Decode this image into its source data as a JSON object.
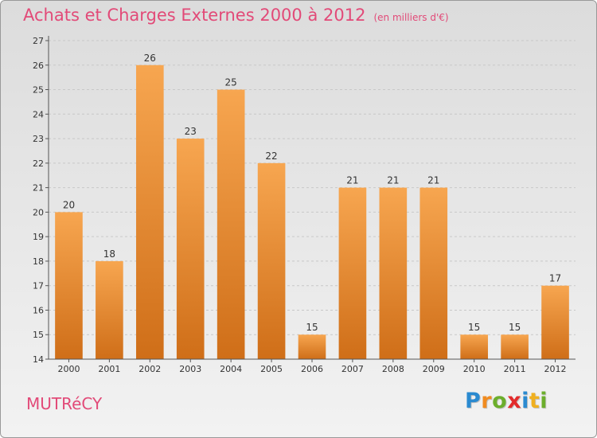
{
  "header": {
    "title": "Achats et Charges Externes 2000 à 2012",
    "unit": "(en milliers d'€)"
  },
  "footer": {
    "place": "MUTRéCY",
    "logo_letters": [
      {
        "char": "P",
        "color": "#2a8ad0"
      },
      {
        "char": "r",
        "color": "#f08b20"
      },
      {
        "char": "o",
        "color": "#6cae2c"
      },
      {
        "char": "x",
        "color": "#e22b2b"
      },
      {
        "char": "i",
        "color": "#2a8ad0"
      },
      {
        "char": "t",
        "color": "#f0b020"
      },
      {
        "char": "i",
        "color": "#6cae2c"
      }
    ]
  },
  "colors": {
    "title": "#e24a78",
    "bar_light": "#f7a650",
    "bar_dark": "#cf6e18",
    "grid": "#c8c8c8"
  },
  "chart_data": {
    "type": "bar",
    "title": "Achats et Charges Externes 2000 à 2012",
    "subtitle": "(en milliers d'€)",
    "categories": [
      "2000",
      "2001",
      "2002",
      "2003",
      "2004",
      "2005",
      "2006",
      "2007",
      "2008",
      "2009",
      "2010",
      "2011",
      "2012"
    ],
    "values": [
      20,
      18,
      26,
      23,
      25,
      22,
      15,
      21,
      21,
      21,
      15,
      15,
      17
    ],
    "ylim": [
      14,
      27
    ],
    "yticks": [
      14,
      15,
      16,
      17,
      18,
      19,
      20,
      21,
      22,
      23,
      24,
      25,
      26,
      27
    ],
    "grid": true,
    "xlabel": "",
    "ylabel": ""
  }
}
